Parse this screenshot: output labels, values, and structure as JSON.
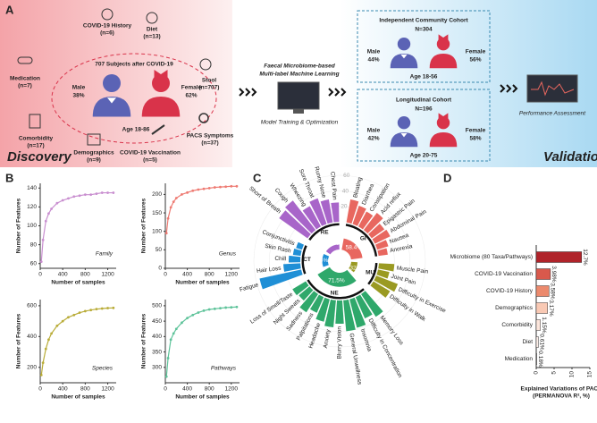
{
  "panel_labels": [
    "A",
    "B",
    "C",
    "D"
  ],
  "panel_a": {
    "discovery": "Discovery",
    "validation": "Validation",
    "cohort_title": "707 Subjects after COVID-19",
    "male": "Male",
    "male_pct": "38%",
    "female": "Female",
    "female_pct": "62%",
    "age": "Age 18-86",
    "factors": [
      {
        "name": "COVID-19 History",
        "n": "(n=6)"
      },
      {
        "name": "Diet",
        "n": "(n=13)"
      },
      {
        "name": "Medication",
        "n": "(n=7)"
      },
      {
        "name": "Stool",
        "n": "(n=707)"
      },
      {
        "name": "Comorbidity",
        "n": "(n=17)"
      },
      {
        "name": "PACS Symptoms",
        "n": "(n=37)"
      },
      {
        "name": "Demographics",
        "n": "(n=9)"
      },
      {
        "name": "COVID-19 Vaccination",
        "n": "(n=5)"
      }
    ],
    "ml_title": [
      "Faecal Microbiome-based",
      "Multi-label Machine Learning"
    ],
    "ml_caption": "Model Training & Optimization",
    "cohorts": [
      {
        "title": "Independent Community Cohort",
        "n": "N=304",
        "male": "Male",
        "male_pct": "44%",
        "female": "Female",
        "female_pct": "56%",
        "age": "Age 18-56"
      },
      {
        "title": "Longitudinal Cohort",
        "n": "N=196",
        "male": "Male",
        "male_pct": "42%",
        "female": "Female",
        "female_pct": "58%",
        "age": "Age 20-75"
      }
    ],
    "assessment": "Performance Assessment"
  },
  "chart_data": [
    {
      "type": "line",
      "title": "Family",
      "color": "#c98fd0",
      "xlabel": "Number of samples",
      "ylabel": "Number of Features",
      "x": [
        20,
        50,
        100,
        150,
        200,
        300,
        400,
        500,
        600,
        700,
        800,
        900,
        1000,
        1100,
        1200,
        1300
      ],
      "values": [
        62,
        85,
        105,
        113,
        118,
        124,
        127,
        129,
        131,
        132,
        133,
        133,
        134,
        135,
        135,
        135
      ],
      "xlim": [
        0,
        1350
      ],
      "xticks": [
        0,
        400,
        800,
        1200
      ],
      "ylim": [
        55,
        145
      ],
      "yticks": [
        60,
        80,
        100,
        120,
        140
      ]
    },
    {
      "type": "line",
      "title": "Genus",
      "color": "#ee7b73",
      "xlabel": "Number of samples",
      "ylabel": "Number of Features",
      "x": [
        20,
        50,
        100,
        150,
        200,
        300,
        400,
        500,
        600,
        700,
        800,
        900,
        1000,
        1100,
        1200,
        1300
      ],
      "values": [
        95,
        135,
        165,
        180,
        190,
        200,
        205,
        210,
        213,
        215,
        217,
        219,
        220,
        221,
        222,
        222
      ],
      "xlim": [
        0,
        1350
      ],
      "xticks": [
        0,
        400,
        800,
        1200
      ],
      "ylim": [
        0,
        230
      ],
      "yticks": [
        0,
        50,
        100,
        150,
        200
      ]
    },
    {
      "type": "line",
      "title": "Species",
      "color": "#b9ac38",
      "xlabel": "Number of samples",
      "ylabel": "Number of Features",
      "x": [
        20,
        50,
        100,
        150,
        200,
        300,
        400,
        500,
        600,
        700,
        800,
        900,
        1000,
        1100,
        1200,
        1300
      ],
      "values": [
        150,
        230,
        320,
        380,
        420,
        470,
        500,
        525,
        540,
        555,
        565,
        572,
        578,
        582,
        585,
        586
      ],
      "xlim": [
        0,
        1350
      ],
      "xticks": [
        0,
        400,
        800,
        1200
      ],
      "ylim": [
        100,
        640
      ],
      "yticks": [
        200,
        400,
        600
      ]
    },
    {
      "type": "line",
      "title": "Pathways",
      "color": "#5ec39a",
      "xlabel": "Number of samples",
      "ylabel": "Number of Features",
      "x": [
        20,
        50,
        100,
        150,
        200,
        300,
        400,
        500,
        600,
        700,
        800,
        900,
        1000,
        1100,
        1200,
        1300
      ],
      "values": [
        270,
        330,
        390,
        410,
        425,
        445,
        460,
        470,
        478,
        484,
        488,
        490,
        492,
        494,
        495,
        496
      ],
      "xlim": [
        0,
        1350
      ],
      "xticks": [
        0,
        400,
        800,
        1200
      ],
      "ylim": [
        250,
        520
      ],
      "yticks": [
        300,
        350,
        400,
        450,
        500
      ]
    },
    {
      "type": "polar_bar",
      "rlim": [
        0,
        60
      ],
      "rticks": [
        20,
        40,
        60
      ],
      "series": [
        {
          "name": "GI",
          "color": "#e8675f",
          "share": 58.4,
          "share_label": "58.4%",
          "categories": [
            "Bloating",
            "Diarrhea",
            "Constipation",
            "Acid reflux",
            "Epigastric Pain",
            "Abdominal Pain",
            "Nausea",
            "Anorexia"
          ],
          "values": [
            30,
            25,
            22,
            28,
            20,
            22,
            15,
            12
          ]
        },
        {
          "name": "MU",
          "color": "#9a9a22",
          "share": 32.4,
          "share_label": "32.4%",
          "categories": [
            "Muscle Pain",
            "Joint Pain",
            "Difficulty in Exercise",
            "Difficulty in Walk"
          ],
          "values": [
            20,
            15,
            30,
            25
          ]
        },
        {
          "name": "NE",
          "color": "#2fa86b",
          "share": 71.5,
          "share_label": "71.5%",
          "categories": [
            "Memory Loss",
            "Difficulty in Concentration",
            "Insomnia",
            "General Unwellness",
            "Blurry Vision",
            "Anxiety",
            "Headache",
            "Palpitations",
            "Sadness",
            "Night Sweats",
            "Loss of Smell/Taste"
          ],
          "values": [
            35,
            30,
            38,
            40,
            30,
            35,
            30,
            22,
            28,
            18,
            20
          ]
        },
        {
          "name": "CT",
          "color": "#1f8fd6",
          "share": 29.4,
          "share_label": "29.4%",
          "categories": [
            "Fatigue",
            "Hair Loss",
            "Chill",
            "Skin Rash",
            "Conjunctivitis"
          ],
          "values": [
            55,
            22,
            15,
            10,
            8
          ]
        },
        {
          "name": "RE",
          "color": "#a865c9",
          "share": 25.8,
          "share_label": "25.8%",
          "categories": [
            "Short of Breath",
            "Cough",
            "Wheezing",
            "Sore Throat",
            "Runny Nose",
            "Chest Pain"
          ],
          "values": [
            45,
            48,
            30,
            35,
            30,
            25
          ]
        }
      ]
    },
    {
      "type": "hbar",
      "xlabel": [
        "Explained Variations of PACS",
        "(PERMANOVA R², %)"
      ],
      "categories": [
        "Microbiome (80 Taxa/Pathways)",
        "COVID-19 Vaccination",
        "COVID-19 History",
        "Demographics",
        "Comorbidity",
        "Diet",
        "Medication"
      ],
      "values": [
        12.7,
        3.98,
        3.58,
        3.17,
        1.15,
        0.61,
        0.18
      ],
      "value_labels": [
        "12.7%",
        "3.98%",
        "3.58%",
        "3.17%",
        "1.15%",
        "0.61%",
        "0.18%"
      ],
      "colors": [
        "#b0232a",
        "#d9594c",
        "#ec8a6d",
        "#f9c9b4",
        "#fde6dc",
        "#fef0ea",
        "#fff5f2"
      ],
      "xlim": [
        0,
        15
      ],
      "xticks": [
        0,
        5,
        10,
        15
      ]
    }
  ]
}
